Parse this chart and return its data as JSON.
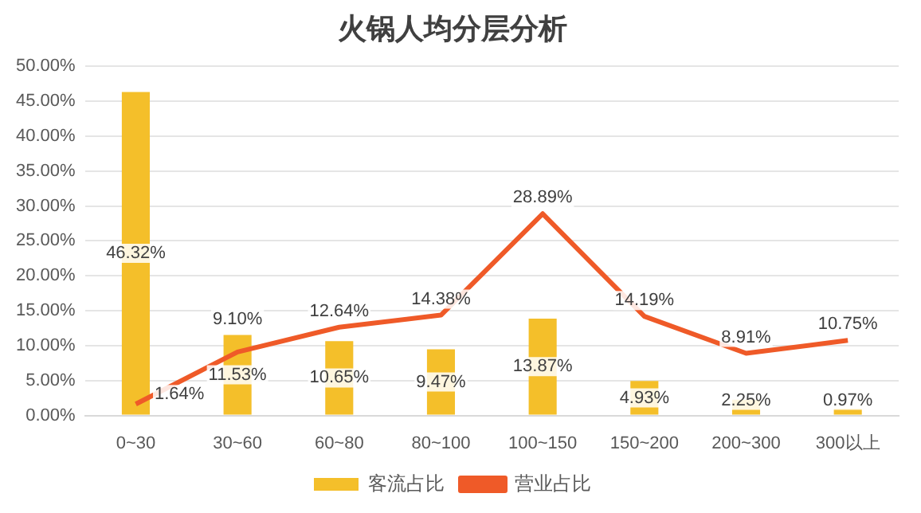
{
  "chart_data": {
    "type": "bar",
    "title": "火锅人均分层分析",
    "categories": [
      "0~30",
      "30~60",
      "60~80",
      "80~100",
      "100~150",
      "150~200",
      "200~300",
      "300以上"
    ],
    "series": [
      {
        "name": "客流占比",
        "color": "#f4bf2a",
        "values": [
          46.32,
          11.53,
          10.65,
          9.47,
          13.87,
          4.93,
          2.25,
          0.97
        ],
        "value_labels": [
          "46.32%",
          "11.53%",
          "10.65%",
          "9.47%",
          "13.87%",
          "4.93%",
          "2.25%",
          "0.97%"
        ]
      },
      {
        "name": "营业占比",
        "type": "line",
        "color": "#ef5a28",
        "marker": "none",
        "values": [
          1.64,
          9.1,
          12.64,
          14.38,
          28.89,
          14.19,
          8.91,
          10.75
        ],
        "value_labels": [
          "1.64%",
          "9.10%",
          "12.64%",
          "14.38%",
          "28.89%",
          "14.19%",
          "8.91%",
          "10.75%"
        ]
      }
    ],
    "ylim": [
      0,
      50
    ],
    "yticks": [
      {
        "value": 0,
        "label": "0.00%"
      },
      {
        "value": 5,
        "label": "5.00%"
      },
      {
        "value": 10,
        "label": "10.00%"
      },
      {
        "value": 15,
        "label": "15.00%"
      },
      {
        "value": 20,
        "label": "20.00%"
      },
      {
        "value": 25,
        "label": "25.00%"
      },
      {
        "value": 30,
        "label": "30.00%"
      },
      {
        "value": 35,
        "label": "35.00%"
      },
      {
        "value": 40,
        "label": "40.00%"
      },
      {
        "value": 45,
        "label": "45.00%"
      },
      {
        "value": 50,
        "label": "50.00%"
      }
    ],
    "grid": "y",
    "legend": "bottom"
  }
}
